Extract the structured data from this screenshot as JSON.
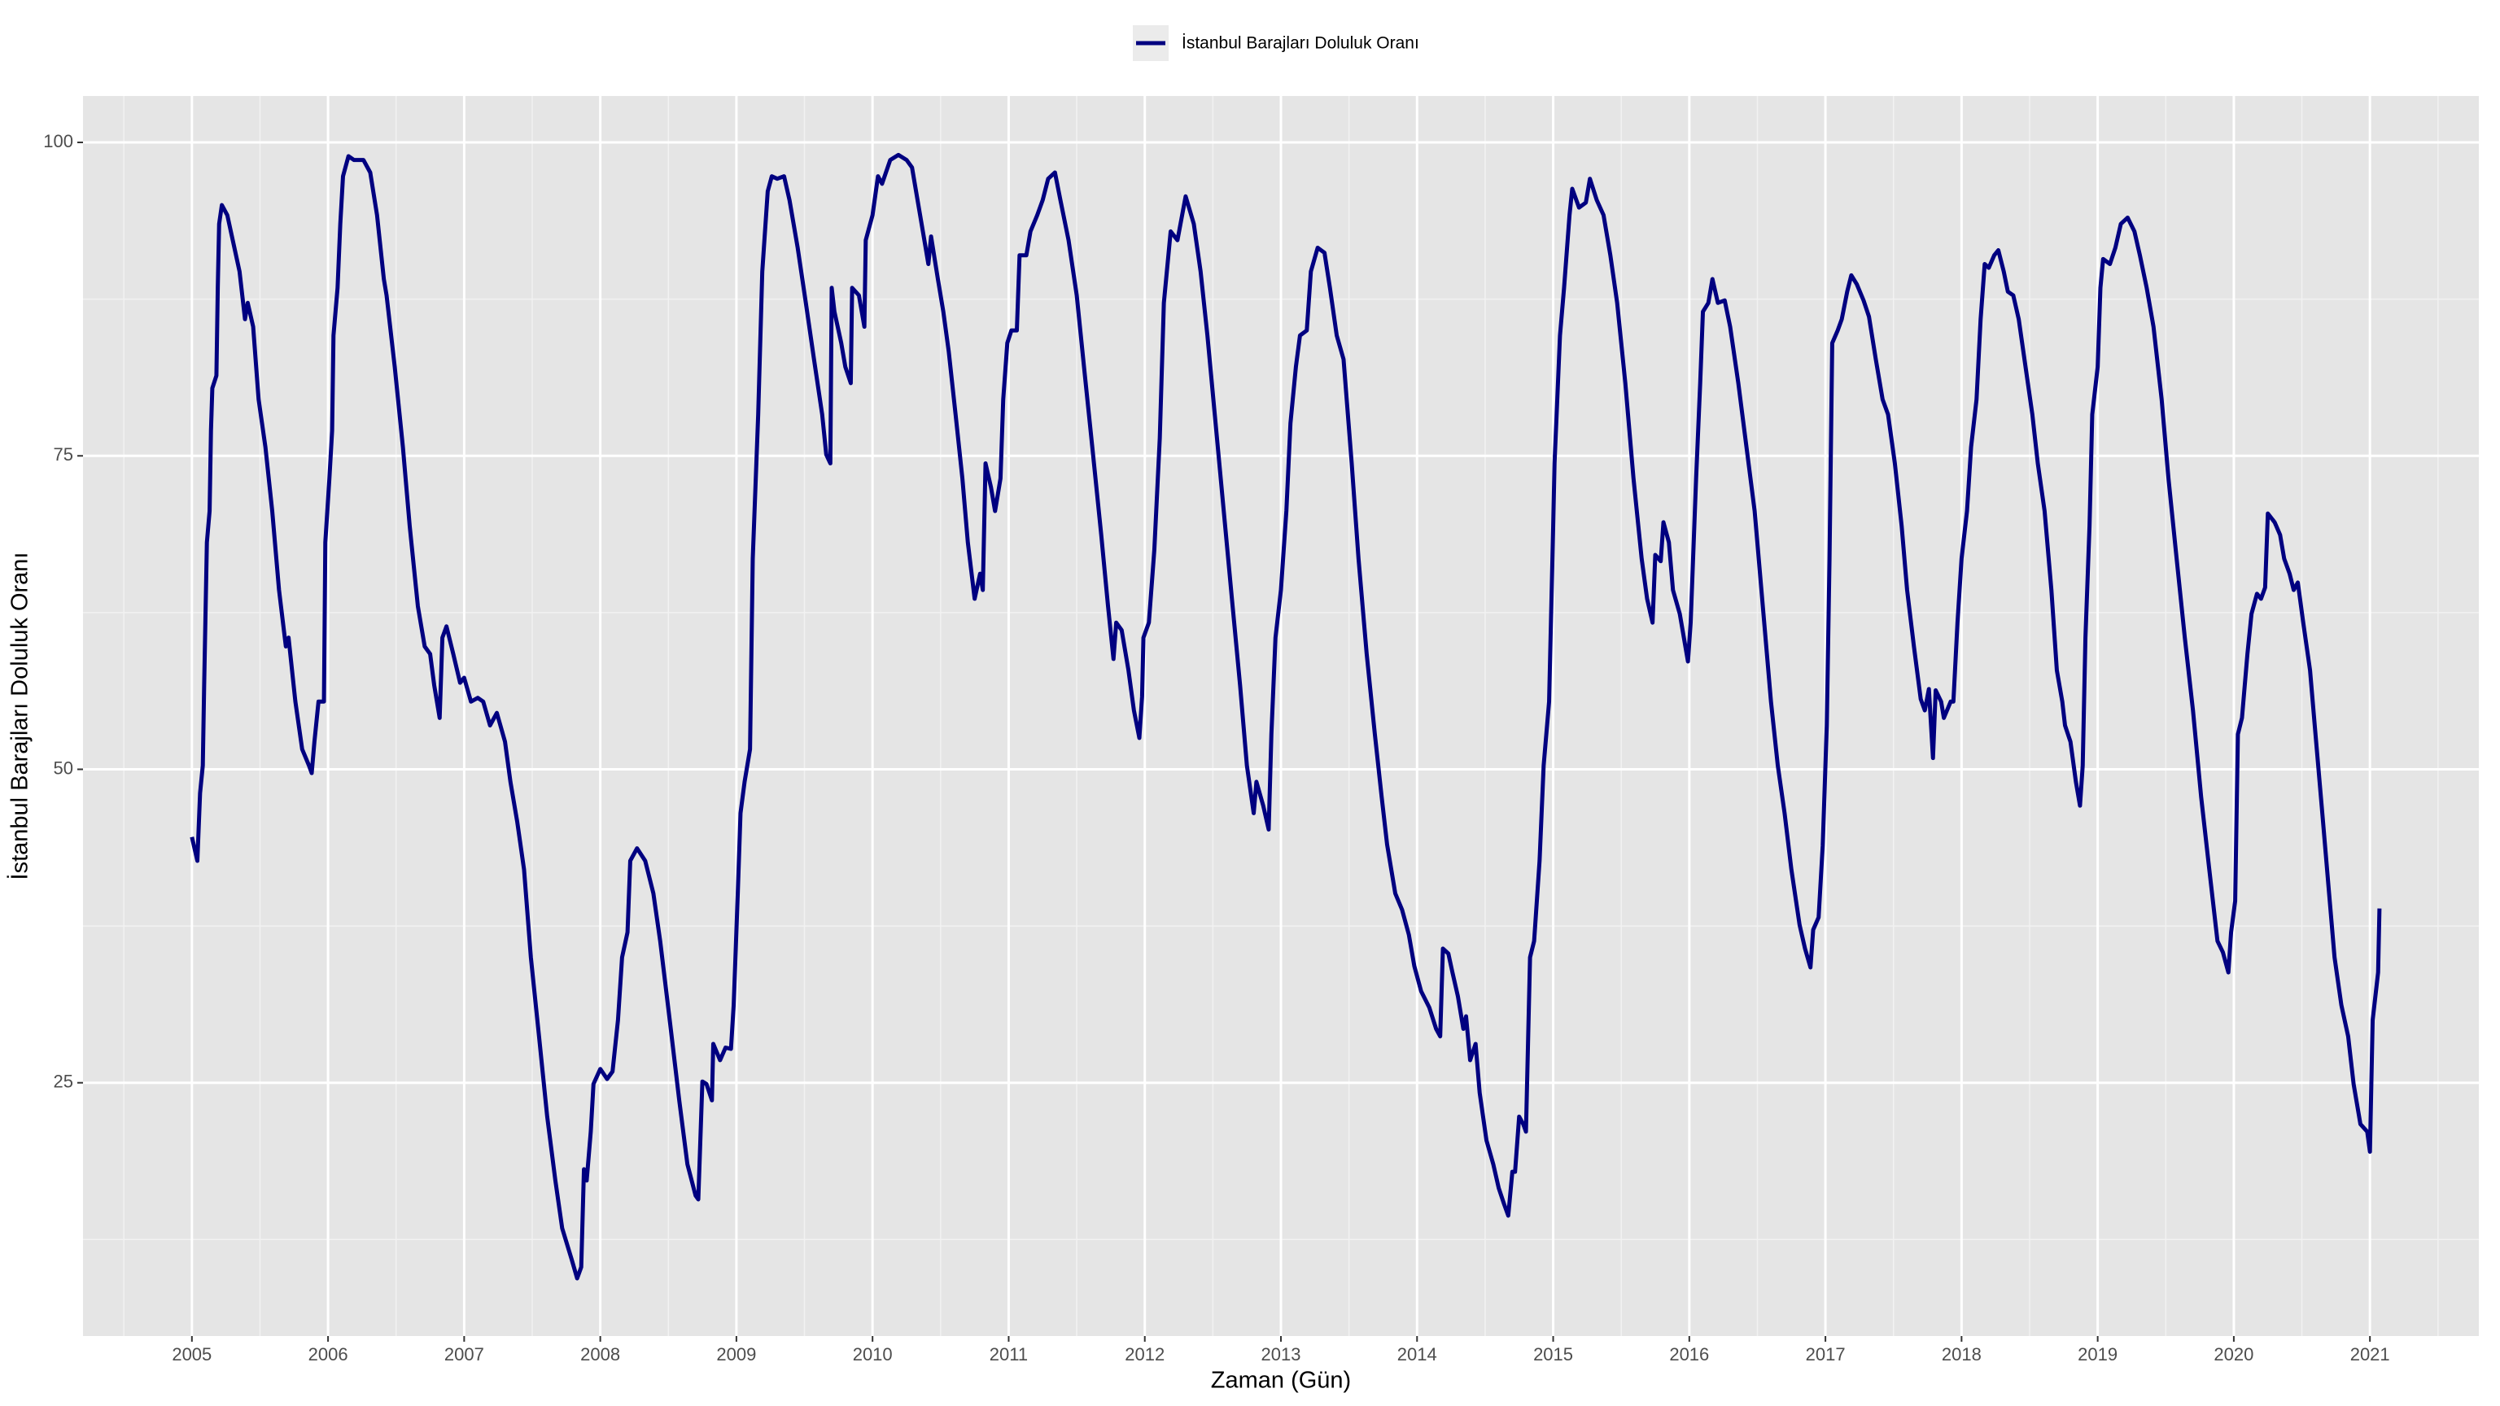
{
  "chart_data": {
    "type": "line",
    "x_label": "Zaman (Gün)",
    "y_label": "İstanbul Barajları Doluluk Oranı",
    "legend": "top",
    "grid": true,
    "xlim": [
      2004.2,
      2021.8
    ],
    "ylim": [
      4.8,
      103.7
    ],
    "xticks": [
      2005,
      2006,
      2007,
      2008,
      2009,
      2010,
      2011,
      2012,
      2013,
      2014,
      2015,
      2016,
      2017,
      2018,
      2019,
      2020,
      2021
    ],
    "yticks": [
      25,
      50,
      75,
      100
    ],
    "x": [
      2005.0,
      2005.04,
      2005.06,
      2005.08,
      2005.09,
      2005.11,
      2005.13,
      2005.14,
      2005.15,
      2005.18,
      2005.19,
      2005.2,
      2005.22,
      2005.26,
      2005.3,
      2005.35,
      2005.39,
      2005.41,
      2005.45,
      2005.49,
      2005.54,
      2005.59,
      2005.64,
      2005.69,
      2005.71,
      2005.76,
      2005.81,
      2005.86,
      2005.88,
      2005.9,
      2005.93,
      2005.95,
      2005.97,
      2005.98,
      2006.01,
      2006.03,
      2006.04,
      2006.07,
      2006.09,
      2006.11,
      2006.15,
      2006.19,
      2006.26,
      2006.31,
      2006.36,
      2006.41,
      2006.43,
      2006.49,
      2006.55,
      2006.6,
      2006.66,
      2006.71,
      2006.75,
      2006.78,
      2006.82,
      2006.84,
      2006.87,
      2006.92,
      2006.97,
      2007.0,
      2007.05,
      2007.1,
      2007.14,
      2007.19,
      2007.24,
      2007.3,
      2007.34,
      2007.39,
      2007.44,
      2007.49,
      2007.55,
      2007.61,
      2007.67,
      2007.72,
      2007.79,
      2007.83,
      2007.86,
      2007.88,
      2007.9,
      2007.93,
      2007.95,
      2008.0,
      2008.05,
      2008.09,
      2008.13,
      2008.16,
      2008.2,
      2008.22,
      2008.27,
      2008.33,
      2008.39,
      2008.44,
      2008.51,
      2008.58,
      2008.64,
      2008.7,
      2008.72,
      2008.75,
      2008.78,
      2008.82,
      2008.83,
      2008.88,
      2008.92,
      2008.96,
      2008.98,
      2009.01,
      2009.03,
      2009.06,
      2009.1,
      2009.12,
      2009.16,
      2009.19,
      2009.23,
      2009.26,
      2009.3,
      2009.35,
      2009.39,
      2009.45,
      2009.51,
      2009.57,
      2009.63,
      2009.66,
      2009.69,
      2009.7,
      2009.72,
      2009.77,
      2009.8,
      2009.84,
      2009.85,
      2009.9,
      2009.94,
      2009.95,
      2010.0,
      2010.04,
      2010.07,
      2010.13,
      2010.19,
      2010.25,
      2010.29,
      2010.34,
      2010.39,
      2010.41,
      2010.43,
      2010.48,
      2010.52,
      2010.56,
      2010.61,
      2010.66,
      2010.7,
      2010.75,
      2010.79,
      2010.81,
      2010.83,
      2010.87,
      2010.9,
      2010.94,
      2010.96,
      2010.99,
      2011.02,
      2011.06,
      2011.08,
      2011.13,
      2011.16,
      2011.21,
      2011.25,
      2011.29,
      2011.34,
      2011.38,
      2011.44,
      2011.5,
      2011.56,
      2011.62,
      2011.68,
      2011.73,
      2011.77,
      2011.79,
      2011.83,
      2011.88,
      2011.92,
      2011.96,
      2011.98,
      2011.99,
      2012.03,
      2012.07,
      2012.11,
      2012.14,
      2012.19,
      2012.24,
      2012.3,
      2012.36,
      2012.41,
      2012.46,
      2012.52,
      2012.58,
      2012.64,
      2012.7,
      2012.75,
      2012.8,
      2012.82,
      2012.87,
      2012.91,
      2012.93,
      2012.96,
      2013.0,
      2013.04,
      2013.07,
      2013.11,
      2013.14,
      2013.19,
      2013.22,
      2013.27,
      2013.32,
      2013.36,
      2013.41,
      2013.46,
      2013.52,
      2013.57,
      2013.63,
      2013.69,
      2013.74,
      2013.78,
      2013.84,
      2013.89,
      2013.94,
      2013.98,
      2014.03,
      2014.09,
      2014.14,
      2014.17,
      2014.19,
      2014.23,
      2014.26,
      2014.3,
      2014.34,
      2014.36,
      2014.39,
      2014.43,
      2014.46,
      2014.51,
      2014.56,
      2014.6,
      2014.64,
      2014.67,
      2014.7,
      2014.72,
      2014.75,
      2014.78,
      2014.8,
      2014.83,
      2014.86,
      2014.9,
      2014.93,
      2014.97,
      2015.0,
      2015.01,
      2015.05,
      2015.08,
      2015.12,
      2015.14,
      2015.19,
      2015.24,
      2015.27,
      2015.32,
      2015.37,
      2015.42,
      2015.47,
      2015.53,
      2015.59,
      2015.65,
      2015.69,
      2015.73,
      2015.75,
      2015.79,
      2015.81,
      2015.85,
      2015.88,
      2015.93,
      2015.99,
      2016.01,
      2016.05,
      2016.08,
      2016.1,
      2016.14,
      2016.17,
      2016.21,
      2016.26,
      2016.3,
      2016.36,
      2016.42,
      2016.48,
      2016.54,
      2016.6,
      2016.65,
      2016.7,
      2016.75,
      2016.81,
      2016.85,
      2016.89,
      2016.91,
      2016.95,
      2016.98,
      2017.01,
      2017.03,
      2017.05,
      2017.09,
      2017.12,
      2017.16,
      2017.19,
      2017.23,
      2017.28,
      2017.32,
      2017.37,
      2017.42,
      2017.46,
      2017.51,
      2017.56,
      2017.6,
      2017.65,
      2017.7,
      2017.73,
      2017.76,
      2017.79,
      2017.81,
      2017.85,
      2017.87,
      2017.92,
      2017.94,
      2017.97,
      2018.0,
      2018.04,
      2018.07,
      2018.11,
      2018.14,
      2018.17,
      2018.2,
      2018.24,
      2018.27,
      2018.31,
      2018.34,
      2018.38,
      2018.42,
      2018.47,
      2018.52,
      2018.56,
      2018.61,
      2018.66,
      2018.7,
      2018.74,
      2018.76,
      2018.8,
      2018.84,
      2018.87,
      2018.89,
      2018.91,
      2018.94,
      2018.96,
      2019.0,
      2019.02,
      2019.04,
      2019.09,
      2019.13,
      2019.17,
      2019.22,
      2019.27,
      2019.31,
      2019.36,
      2019.41,
      2019.47,
      2019.52,
      2019.58,
      2019.64,
      2019.7,
      2019.76,
      2019.82,
      2019.88,
      2019.92,
      2019.96,
      2019.98,
      2020.01,
      2020.03,
      2020.06,
      2020.1,
      2020.13,
      2020.17,
      2020.2,
      2020.23,
      2020.25,
      2020.3,
      2020.34,
      2020.37,
      2020.41,
      2020.44,
      2020.47,
      2020.51,
      2020.56,
      2020.6,
      2020.65,
      2020.7,
      2020.74,
      2020.79,
      2020.84,
      2020.88,
      2020.93,
      2020.98,
      2021.0,
      2021.02,
      2021.06,
      2021.07
    ],
    "series": [
      {
        "name": "İstanbul Barajları Doluluk Oranı",
        "color": "#000080",
        "values": [
          44.6,
          42.7,
          48.1,
          50.3,
          56.7,
          68.1,
          70.6,
          77,
          80.4,
          81.4,
          88.4,
          93.5,
          95,
          94.2,
          92.2,
          89.7,
          85.9,
          87.2,
          85.3,
          79.5,
          75.7,
          70.6,
          64.3,
          59.8,
          60.5,
          55.4,
          51.6,
          50.3,
          49.7,
          52.2,
          55.4,
          55.4,
          55.4,
          68.1,
          73.2,
          77,
          84.6,
          88.4,
          93.5,
          97.3,
          98.9,
          98.6,
          98.6,
          97.6,
          94.2,
          89.1,
          87.8,
          82.1,
          75.7,
          69.4,
          63,
          59.8,
          59.2,
          56.7,
          54.1,
          60.5,
          61.4,
          59.2,
          56.9,
          57.3,
          55.4,
          55.7,
          55.4,
          53.5,
          54.5,
          52.2,
          49,
          45.8,
          42,
          35,
          28.7,
          22.3,
          17.2,
          13.4,
          10.9,
          9.4,
          10.3,
          18.1,
          17.2,
          21.1,
          24.9,
          26.1,
          25.3,
          25.9,
          30,
          35,
          37,
          42.7,
          43.7,
          42.7,
          40.1,
          36.3,
          30,
          23.6,
          18.5,
          16,
          15.7,
          25.1,
          24.9,
          23.6,
          28.1,
          26.8,
          27.8,
          27.7,
          31.2,
          40.1,
          46.5,
          49,
          51.6,
          66.8,
          78.3,
          89.7,
          96.1,
          97.3,
          97.1,
          97.3,
          95.4,
          91.6,
          87.2,
          82.7,
          78.3,
          75.1,
          74.4,
          88.4,
          86.5,
          84,
          82.1,
          80.8,
          88.4,
          87.8,
          85.3,
          92.2,
          94.2,
          97.3,
          96.7,
          98.6,
          99,
          98.6,
          98,
          94.8,
          91.6,
          90.3,
          92.5,
          89.1,
          86.5,
          83.3,
          78.3,
          73.2,
          68.1,
          63.6,
          65.6,
          64.3,
          74.4,
          72.5,
          70.6,
          73.2,
          79.5,
          84,
          85,
          85,
          91,
          91,
          92.9,
          94.2,
          95.4,
          97.1,
          97.6,
          95.4,
          92.2,
          87.8,
          81.4,
          75.1,
          68.7,
          63,
          58.8,
          61.7,
          61.1,
          57.9,
          54.7,
          52.5,
          55.8,
          60.5,
          61.7,
          67.5,
          76.4,
          87.2,
          92.9,
          92.2,
          95.7,
          93.5,
          89.7,
          84.6,
          77.6,
          70.6,
          63.6,
          56.7,
          50.3,
          46.5,
          49,
          47.1,
          45.2,
          52.8,
          60.5,
          64.3,
          70.6,
          77.6,
          82.1,
          84.6,
          85,
          89.7,
          91.6,
          91.2,
          88.4,
          84.6,
          82.7,
          74.4,
          66.8,
          59.2,
          52.8,
          47.8,
          44,
          40.1,
          38.8,
          36.8,
          34.3,
          32.3,
          31,
          29.3,
          28.7,
          35.7,
          35.3,
          33.8,
          31.9,
          29.3,
          30.3,
          26.8,
          28.1,
          24.2,
          20.4,
          18.5,
          16.6,
          15.3,
          14.4,
          17.9,
          17.9,
          22.3,
          21.7,
          21.1,
          35,
          36.3,
          42.7,
          50.3,
          55.4,
          69.4,
          74.4,
          84.6,
          88.4,
          94.2,
          96.3,
          94.8,
          95.2,
          97.1,
          95.4,
          94.2,
          91,
          87.2,
          80.8,
          73.2,
          66.8,
          63.6,
          61.7,
          67.1,
          66.6,
          69.7,
          68.1,
          64.3,
          62.4,
          58.6,
          61.7,
          73.2,
          80.8,
          86.5,
          87.2,
          89.1,
          87.2,
          87.4,
          85.3,
          80.8,
          75.7,
          70.6,
          63,
          55.4,
          50.3,
          46.5,
          42,
          37.6,
          35.7,
          34.2,
          37.2,
          38.2,
          43.9,
          53.5,
          66.8,
          84,
          85,
          85.9,
          88.1,
          89.4,
          88.7,
          87.4,
          86.1,
          82.7,
          79.5,
          78.3,
          74.4,
          69.4,
          64.3,
          59.8,
          55.6,
          54.7,
          56.4,
          50.9,
          56.3,
          55.4,
          54.1,
          55.4,
          55.4,
          61.7,
          66.8,
          70.6,
          75.7,
          79.5,
          85.9,
          90.3,
          90,
          91,
          91.4,
          89.7,
          88.1,
          87.8,
          85.9,
          82.1,
          78.3,
          74.4,
          70.6,
          64.3,
          57.9,
          55.4,
          53.5,
          52.2,
          49,
          47.1,
          50.3,
          60.5,
          69.4,
          78.3,
          82.1,
          88.4,
          90.7,
          90.3,
          91.6,
          93.5,
          94,
          92.9,
          91,
          88.4,
          85.3,
          79.5,
          73.2,
          66.8,
          60.5,
          54.7,
          47.8,
          42,
          36.3,
          35.4,
          33.8,
          37,
          39.5,
          52.8,
          54.1,
          59.2,
          62.4,
          64,
          63.6,
          64.5,
          70.4,
          69.7,
          68.7,
          66.8,
          65.6,
          64.3,
          64.9,
          61.7,
          57.9,
          52.8,
          46.5,
          40.1,
          35,
          31.2,
          28.7,
          24.9,
          21.7,
          21.1,
          19.5,
          30,
          33.8,
          38.9
        ]
      }
    ]
  }
}
